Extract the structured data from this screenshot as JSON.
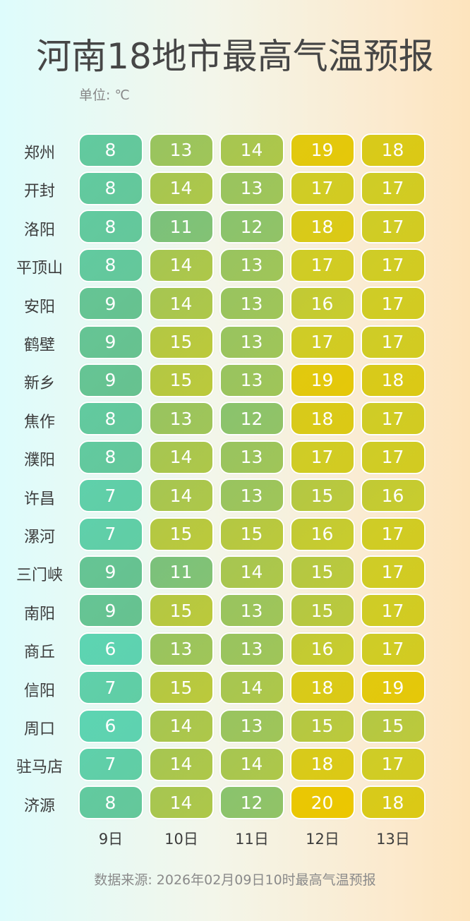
{
  "chart_data": {
    "type": "heatmap",
    "title": "河南18地市最高气温预报",
    "unit_label": "单位: ℃",
    "rows": [
      "郑州",
      "开封",
      "洛阳",
      "平顶山",
      "安阳",
      "鹤壁",
      "新乡",
      "焦作",
      "濮阳",
      "许昌",
      "漯河",
      "三门峡",
      "南阳",
      "商丘",
      "信阳",
      "周口",
      "驻马店",
      "济源"
    ],
    "columns": [
      "9日",
      "10日",
      "11日",
      "12日",
      "13日"
    ],
    "values": [
      [
        8,
        13,
        14,
        19,
        18
      ],
      [
        8,
        14,
        13,
        17,
        17
      ],
      [
        8,
        11,
        12,
        18,
        17
      ],
      [
        8,
        14,
        13,
        17,
        17
      ],
      [
        9,
        14,
        13,
        16,
        17
      ],
      [
        9,
        15,
        13,
        17,
        17
      ],
      [
        9,
        15,
        13,
        19,
        18
      ],
      [
        8,
        13,
        12,
        18,
        17
      ],
      [
        8,
        14,
        13,
        17,
        17
      ],
      [
        7,
        14,
        13,
        15,
        16
      ],
      [
        7,
        15,
        15,
        16,
        17
      ],
      [
        9,
        11,
        14,
        15,
        17
      ],
      [
        9,
        15,
        13,
        15,
        17
      ],
      [
        6,
        13,
        13,
        16,
        17
      ],
      [
        7,
        15,
        14,
        18,
        19
      ],
      [
        6,
        14,
        13,
        15,
        15
      ],
      [
        7,
        14,
        14,
        18,
        17
      ],
      [
        8,
        14,
        12,
        20,
        18
      ]
    ],
    "color_scale": {
      "min": 6,
      "max": 20,
      "stops": [
        "#5dd4b2",
        "#68c08d",
        "#9cc45c",
        "#cccc2a",
        "#ecc700"
      ]
    },
    "source": "数据来源: 2026年02月09日10时最高气温预报"
  }
}
